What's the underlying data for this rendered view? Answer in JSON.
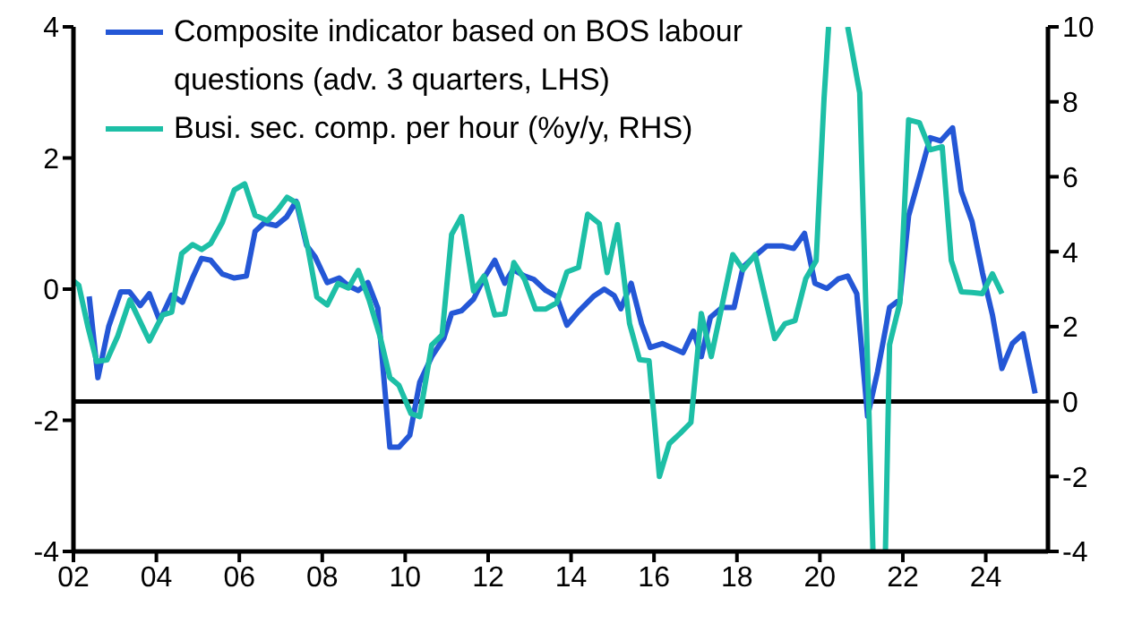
{
  "chart_data": {
    "type": "line",
    "legend": "top left",
    "grid": false,
    "xlim": [
      2002,
      2025.5
    ],
    "xticks": [
      {
        "value": 2002,
        "label": "02"
      },
      {
        "value": 2004,
        "label": "04"
      },
      {
        "value": 2006,
        "label": "06"
      },
      {
        "value": 2008,
        "label": "08"
      },
      {
        "value": 2010,
        "label": "10"
      },
      {
        "value": 2012,
        "label": "12"
      },
      {
        "value": 2014,
        "label": "14"
      },
      {
        "value": 2016,
        "label": "16"
      },
      {
        "value": 2018,
        "label": "18"
      },
      {
        "value": 2020,
        "label": "20"
      },
      {
        "value": 2022,
        "label": "22"
      },
      {
        "value": 2024,
        "label": "24"
      }
    ],
    "ylim": [
      -4,
      4
    ],
    "yticks": [
      -4,
      -2,
      0,
      2,
      4
    ],
    "y2lim": [
      -4,
      10
    ],
    "y2ticks": [
      -4,
      -2,
      0,
      2,
      4,
      6,
      8,
      10
    ],
    "ref_lines": [
      {
        "axis": "y2",
        "value": 0,
        "color": "#000000"
      }
    ],
    "series": [
      {
        "name": "Composite indicator based on BOS labour questions (adv. 3 quarters, LHS)",
        "color": "#2457d6",
        "axis": "y",
        "x": [
          2002.38,
          2002.59,
          2002.85,
          2003.14,
          2003.35,
          2003.61,
          2003.83,
          2004.08,
          2004.37,
          2004.63,
          2004.87,
          2005.09,
          2005.31,
          2005.59,
          2005.88,
          2006.17,
          2006.38,
          2006.6,
          2006.89,
          2007.14,
          2007.37,
          2007.62,
          2007.83,
          2008.12,
          2008.41,
          2008.63,
          2008.87,
          2009.1,
          2009.34,
          2009.63,
          2009.85,
          2010.11,
          2010.35,
          2010.64,
          2010.93,
          2011.12,
          2011.36,
          2011.65,
          2011.9,
          2012.16,
          2012.4,
          2012.6,
          2012.88,
          2013.1,
          2013.39,
          2013.65,
          2013.9,
          2014.18,
          2014.54,
          2014.8,
          2015.04,
          2015.2,
          2015.45,
          2015.7,
          2015.91,
          2016.2,
          2016.7,
          2016.95,
          2017.14,
          2017.36,
          2017.64,
          2017.93,
          2018.15,
          2018.44,
          2018.72,
          2019.09,
          2019.37,
          2019.63,
          2019.88,
          2020.17,
          2020.45,
          2020.67,
          2020.89,
          2021.15,
          2021.39,
          2021.68,
          2021.93,
          2022.14,
          2022.4,
          2022.66,
          2022.91,
          2023.2,
          2023.41,
          2023.67,
          2023.92,
          2024.16,
          2024.39,
          2024.64,
          2024.9,
          2025.19
        ],
        "values": [
          -0.11,
          -1.35,
          -0.57,
          -0.04,
          -0.04,
          -0.25,
          -0.07,
          -0.48,
          -0.09,
          -0.2,
          0.17,
          0.47,
          0.44,
          0.23,
          0.17,
          0.2,
          0.88,
          1.01,
          0.97,
          1.1,
          1.34,
          0.67,
          0.49,
          0.1,
          0.17,
          0.05,
          -0.02,
          0.1,
          -0.29,
          -2.41,
          -2.41,
          -2.23,
          -1.42,
          -1.03,
          -0.75,
          -0.37,
          -0.33,
          -0.15,
          0.17,
          0.44,
          0.09,
          0.3,
          0.2,
          0.15,
          -0.02,
          -0.11,
          -0.55,
          -0.34,
          -0.11,
          0.0,
          -0.1,
          -0.3,
          0.09,
          -0.53,
          -0.89,
          -0.83,
          -0.97,
          -0.64,
          -1.03,
          -0.43,
          -0.28,
          -0.28,
          0.34,
          0.51,
          0.66,
          0.66,
          0.62,
          0.85,
          0.09,
          0.01,
          0.16,
          0.2,
          -0.07,
          -1.94,
          -1.26,
          -0.28,
          -0.16,
          1.12,
          1.71,
          2.31,
          2.26,
          2.46,
          1.49,
          1.03,
          0.25,
          -0.39,
          -1.21,
          -0.83,
          -0.68,
          -1.59
        ]
      },
      {
        "name": "Busi. sec. comp. per hour (%y/y, RHS)",
        "color": "#1dbfa6",
        "axis": "y2",
        "x": [
          2002.0,
          2002.13,
          2002.35,
          2002.56,
          2002.81,
          2003.07,
          2003.36,
          2003.83,
          2004.15,
          2004.37,
          2004.61,
          2004.87,
          2005.09,
          2005.31,
          2005.59,
          2005.88,
          2006.13,
          2006.38,
          2006.68,
          2006.94,
          2007.15,
          2007.4,
          2007.66,
          2007.87,
          2008.12,
          2008.38,
          2008.63,
          2008.87,
          2009.13,
          2009.39,
          2009.63,
          2009.85,
          2010.14,
          2010.35,
          2010.64,
          2010.89,
          2011.12,
          2011.36,
          2011.65,
          2011.9,
          2012.16,
          2012.4,
          2012.62,
          2012.88,
          2013.14,
          2013.39,
          2013.65,
          2013.9,
          2014.18,
          2014.4,
          2014.68,
          2014.87,
          2015.12,
          2015.41,
          2015.65,
          2015.88,
          2016.13,
          2016.37,
          2016.63,
          2016.89,
          2017.14,
          2017.38,
          2017.64,
          2017.9,
          2018.15,
          2018.44,
          2018.91,
          2019.16,
          2019.4,
          2019.66,
          2019.91,
          2020.1,
          2020.21,
          2020.45,
          2020.67,
          2020.96,
          2021.28,
          2021.45,
          2021.58,
          2021.68,
          2021.93,
          2022.14,
          2022.4,
          2022.66,
          2022.95,
          2023.17,
          2023.41,
          2023.67,
          2023.92,
          2024.16,
          2024.39
        ],
        "values": [
          3.22,
          3.1,
          1.99,
          1.07,
          1.11,
          1.75,
          2.71,
          1.62,
          2.31,
          2.39,
          3.95,
          4.19,
          4.06,
          4.22,
          4.78,
          5.65,
          5.81,
          4.97,
          4.83,
          5.14,
          5.45,
          5.29,
          4.06,
          2.79,
          2.58,
          3.15,
          3.03,
          3.5,
          2.71,
          1.75,
          0.64,
          0.43,
          -0.32,
          -0.4,
          1.51,
          1.78,
          4.46,
          4.94,
          2.95,
          3.35,
          2.31,
          2.34,
          3.71,
          3.26,
          2.47,
          2.47,
          2.63,
          3.46,
          3.58,
          5.0,
          4.75,
          3.44,
          4.72,
          2.08,
          1.12,
          1.09,
          -2.0,
          -1.12,
          -0.85,
          -0.56,
          2.35,
          1.2,
          2.56,
          3.92,
          3.52,
          3.92,
          1.68,
          2.08,
          2.16,
          3.28,
          3.76,
          8.08,
          10,
          null,
          10,
          8.24,
          -4,
          null,
          -4,
          1.52,
          2.64,
          7.52,
          7.44,
          6.72,
          6.8,
          3.76,
          2.93,
          2.91,
          2.88,
          3.41,
          2.88
        ]
      }
    ]
  }
}
